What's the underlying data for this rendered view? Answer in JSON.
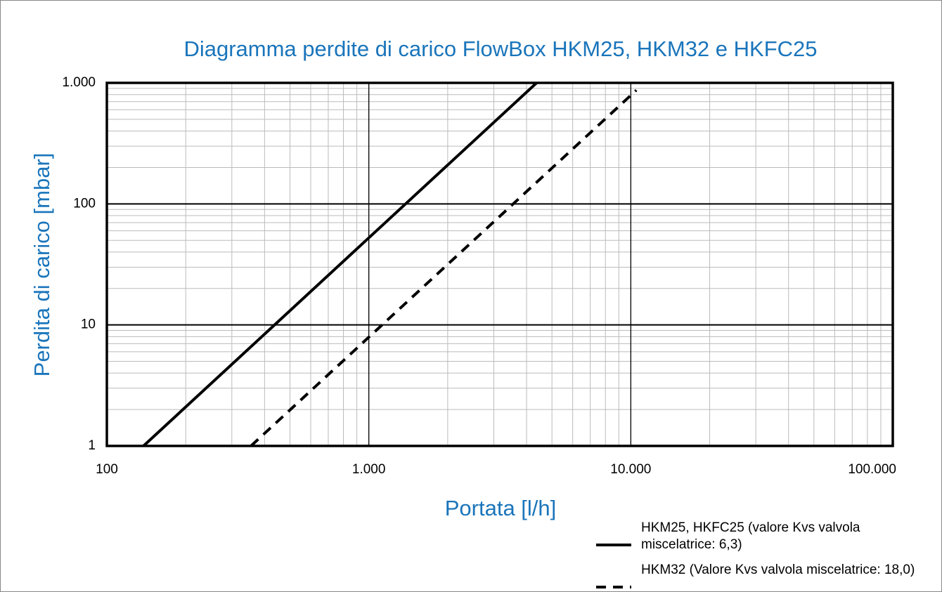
{
  "chart_data": {
    "type": "line",
    "title": "Diagramma perdite di carico FlowBox HKM25, HKM32 e HKFC25",
    "x_label": "Portata [l/h]",
    "y_label": "Perdita di carico [mbar]",
    "log_x": true,
    "log_y": true,
    "grid": true,
    "xlim": [
      100,
      100000
    ],
    "xticks": [
      100,
      {
        "value": 1000,
        "label": "1.000"
      },
      {
        "value": 10000,
        "label": "10.000"
      },
      {
        "value": 100000,
        "label": "100.000"
      }
    ],
    "ylim": [
      1,
      1000
    ],
    "yticks": [
      1,
      10,
      100,
      {
        "value": 1000,
        "label": "1.000"
      }
    ],
    "legend": "bottom-right",
    "series": [
      {
        "name": "HKM25, HKFC25 (valore Kvs valvola miscelatrice: 6,3)",
        "color": "#000000",
        "dash": false,
        "x": [
          138,
          4370
        ],
        "values": [
          1,
          1000
        ]
      },
      {
        "name": "HKM32 (Valore Kvs valvola miscelatrice: 18,0)",
        "color": "#000000",
        "dash": true,
        "x": [
          355,
          10500
        ],
        "values": [
          1,
          870
        ]
      }
    ]
  }
}
